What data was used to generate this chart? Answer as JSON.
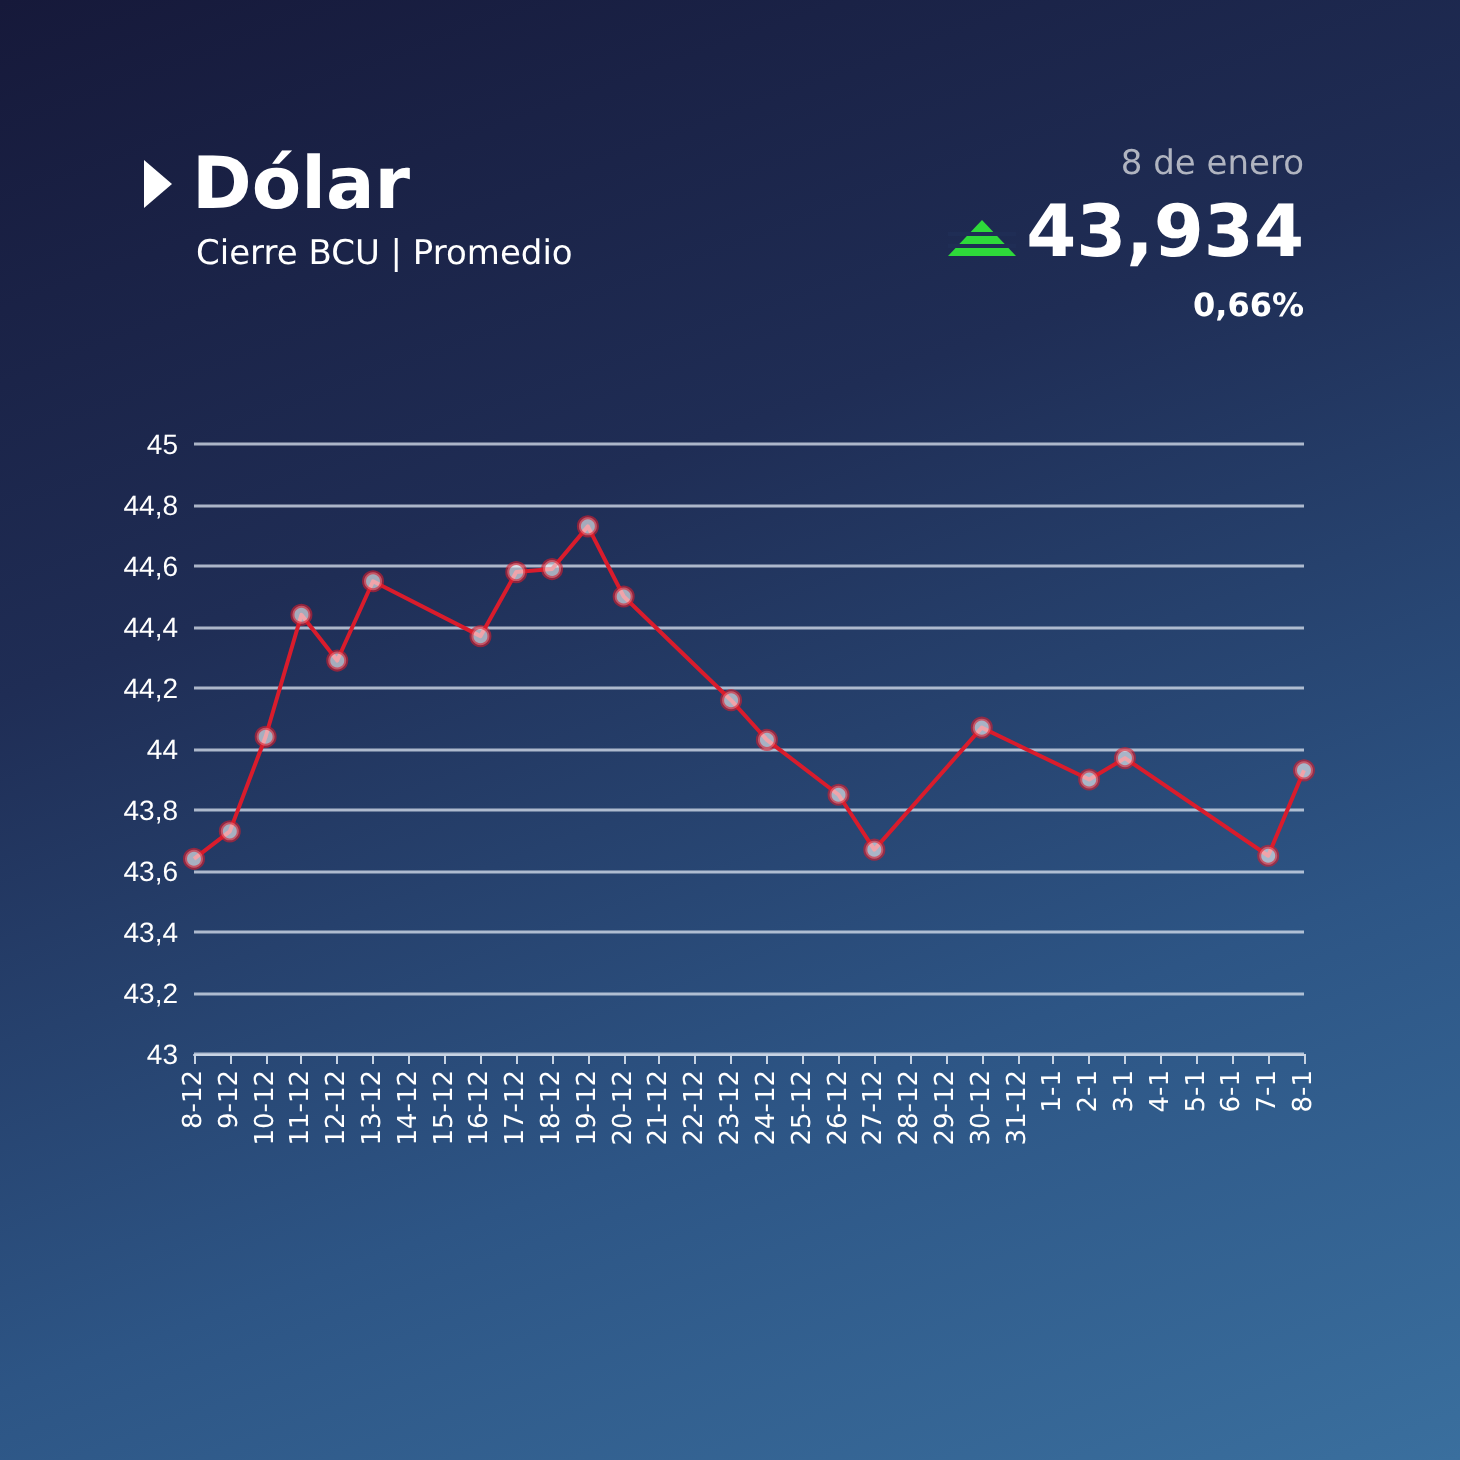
{
  "chart_data": {
    "type": "line",
    "title": "Dólar",
    "subtitle": "Cierre BCU | Promedio",
    "annotations": [
      "8 de enero",
      "43,934",
      "0,66%"
    ],
    "categories": [
      "8-12",
      "9-12",
      "10-12",
      "11-12",
      "12-12",
      "13-12",
      "14-12",
      "15-12",
      "16-12",
      "17-12",
      "18-12",
      "19-12",
      "20-12",
      "21-12",
      "22-12",
      "23-12",
      "24-12",
      "25-12",
      "26-12",
      "27-12",
      "28-12",
      "29-12",
      "30-12",
      "31-12",
      "1-1",
      "2-1",
      "3-1",
      "4-1",
      "5-1",
      "6-1",
      "7-1",
      "8-1"
    ],
    "series": [
      {
        "color": "#d91c2c",
        "values": [
          43.64,
          43.73,
          44.04,
          44.44,
          44.29,
          44.55,
          null,
          null,
          44.37,
          44.58,
          44.59,
          44.73,
          44.5,
          null,
          null,
          44.16,
          44.03,
          null,
          43.85,
          43.67,
          null,
          null,
          44.07,
          null,
          null,
          43.9,
          43.97,
          null,
          null,
          null,
          43.65,
          43.93
        ]
      }
    ],
    "ylim": [
      43,
      45
    ],
    "yticks": [
      {
        "value": 43,
        "label": "43"
      },
      {
        "value": 43.2,
        "label": "43,2"
      },
      {
        "value": 43.4,
        "label": "43,4"
      },
      {
        "value": 43.6,
        "label": "43,6"
      },
      {
        "value": 43.8,
        "label": "43,8"
      },
      {
        "value": 44,
        "label": "44"
      },
      {
        "value": 44.2,
        "label": "44,2"
      },
      {
        "value": 44.4,
        "label": "44,4"
      },
      {
        "value": 44.6,
        "label": "44,6"
      },
      {
        "value": 44.8,
        "label": "44,8"
      },
      {
        "value": 45,
        "label": "45"
      }
    ],
    "grid": "y",
    "marker": "circle"
  }
}
